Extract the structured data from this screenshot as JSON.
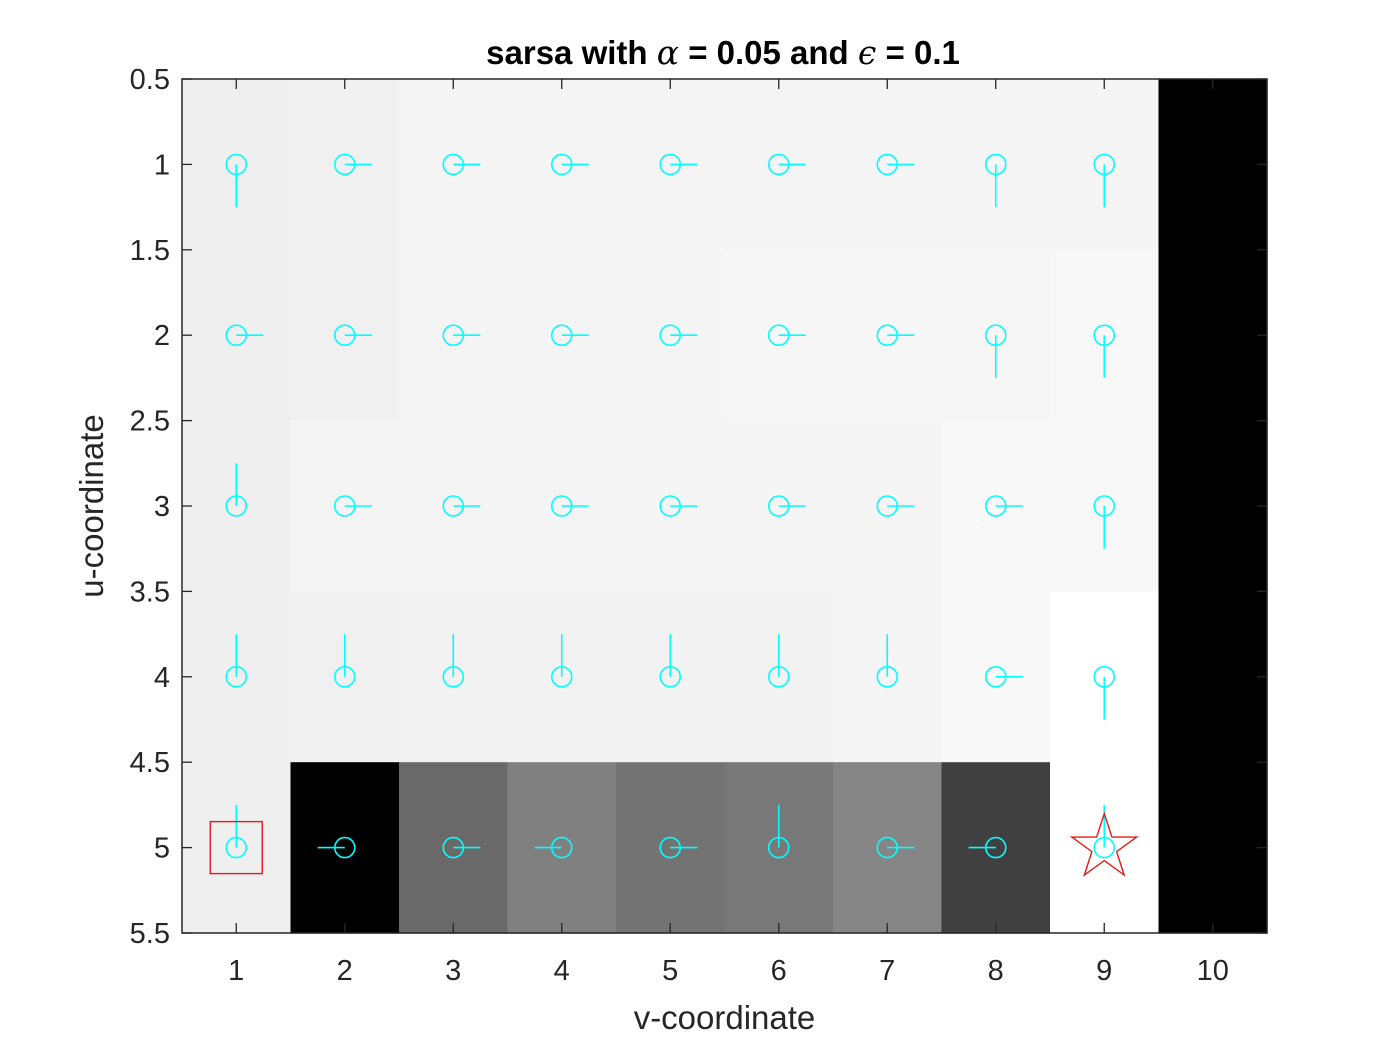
{
  "chart_data": {
    "type": "heatmap",
    "title_prefix": "sarsa with ",
    "title_alpha": "α",
    "title_middle": " = 0.05 and ",
    "title_epsilon": "ϵ",
    "title_suffix": " = 0.1",
    "xlabel": "v-coordinate",
    "ylabel": "u-coordinate",
    "xlim": [
      0.5,
      10.5
    ],
    "ylim": [
      0.5,
      5.5
    ],
    "y_reversed": true,
    "xticks": [
      1,
      2,
      3,
      4,
      5,
      6,
      7,
      8,
      9,
      10
    ],
    "yticks": [
      0.5,
      1,
      1.5,
      2,
      2.5,
      3,
      3.5,
      4,
      4.5,
      5,
      5.5
    ],
    "ytick_labels": [
      "0.5",
      "1",
      "1.5",
      "2",
      "2.5",
      "3",
      "3.5",
      "4",
      "4.5",
      "5",
      "5.5"
    ],
    "colormap": "gray",
    "grid": false,
    "values": [
      [
        239,
        240,
        244,
        244,
        244,
        244,
        245,
        245,
        245,
        0
      ],
      [
        239,
        240,
        244,
        244,
        244,
        246,
        246,
        246,
        248,
        0
      ],
      [
        239,
        244,
        244,
        244,
        245,
        245,
        245,
        248,
        248,
        0
      ],
      [
        239,
        240,
        242,
        242,
        242,
        242,
        245,
        248,
        255,
        0
      ],
      [
        239,
        0,
        105,
        128,
        115,
        120,
        133,
        64,
        255,
        0
      ]
    ],
    "policy_marker_color": "#00ffff",
    "policy": [
      [
        "down",
        "right",
        "right",
        "right",
        "right",
        "right",
        "right",
        "down",
        "down",
        null
      ],
      [
        "right",
        "right",
        "right",
        "right",
        "right",
        "right",
        "right",
        "down",
        "down",
        null
      ],
      [
        "up",
        "right",
        "right",
        "right",
        "right",
        "right",
        "right",
        "right",
        "down",
        null
      ],
      [
        "up",
        "up",
        "up",
        "up",
        "up",
        "up",
        "up",
        "right",
        "down",
        null
      ],
      [
        "up",
        "left",
        "right",
        "left",
        "right",
        "up",
        "right",
        "left",
        "up",
        null
      ]
    ],
    "start": {
      "u": 5,
      "v": 1,
      "marker": "square",
      "color": "#e31a1c"
    },
    "goal": {
      "u": 5,
      "v": 9,
      "marker": "pentagram",
      "color": "#e31a1c"
    }
  }
}
